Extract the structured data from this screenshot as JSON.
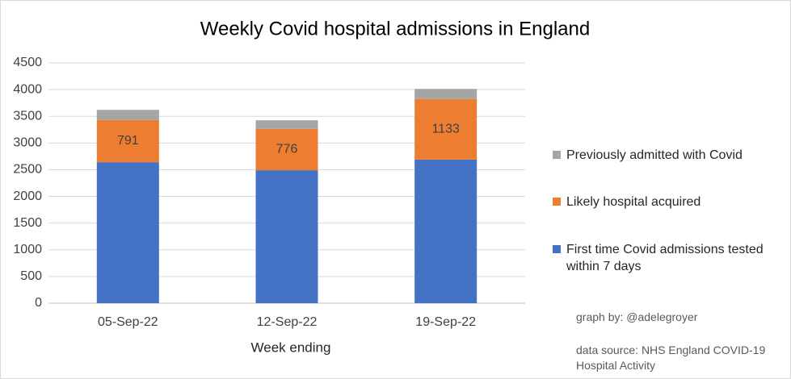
{
  "chart_data": {
    "type": "stacked_bar",
    "title": "Weekly Covid hospital admissions in England",
    "x_label": "Week ending",
    "categories": [
      "05-Sep-22",
      "12-Sep-22",
      "19-Sep-22"
    ],
    "series": [
      {
        "name": "First time Covid admissions tested within 7 days",
        "color": "#4472c4",
        "values": [
          2640,
          2490,
          2690
        ]
      },
      {
        "name": "Likely hospital acquired",
        "color": "#ed7d31",
        "values": [
          791,
          776,
          1133
        ],
        "show_labels": true
      },
      {
        "name": "Previously admitted with Covid",
        "color": "#a5a5a5",
        "values": [
          190,
          160,
          190
        ]
      }
    ],
    "ylim": [
      0,
      4500
    ],
    "yticks": [
      0,
      500,
      1000,
      1500,
      2000,
      2500,
      3000,
      3500,
      4000,
      4500
    ],
    "grid": true,
    "legend": "right",
    "notes": [
      "graph by: @adelegroyer",
      "data source: NHS England COVID-19 Hospital Activity"
    ]
  }
}
